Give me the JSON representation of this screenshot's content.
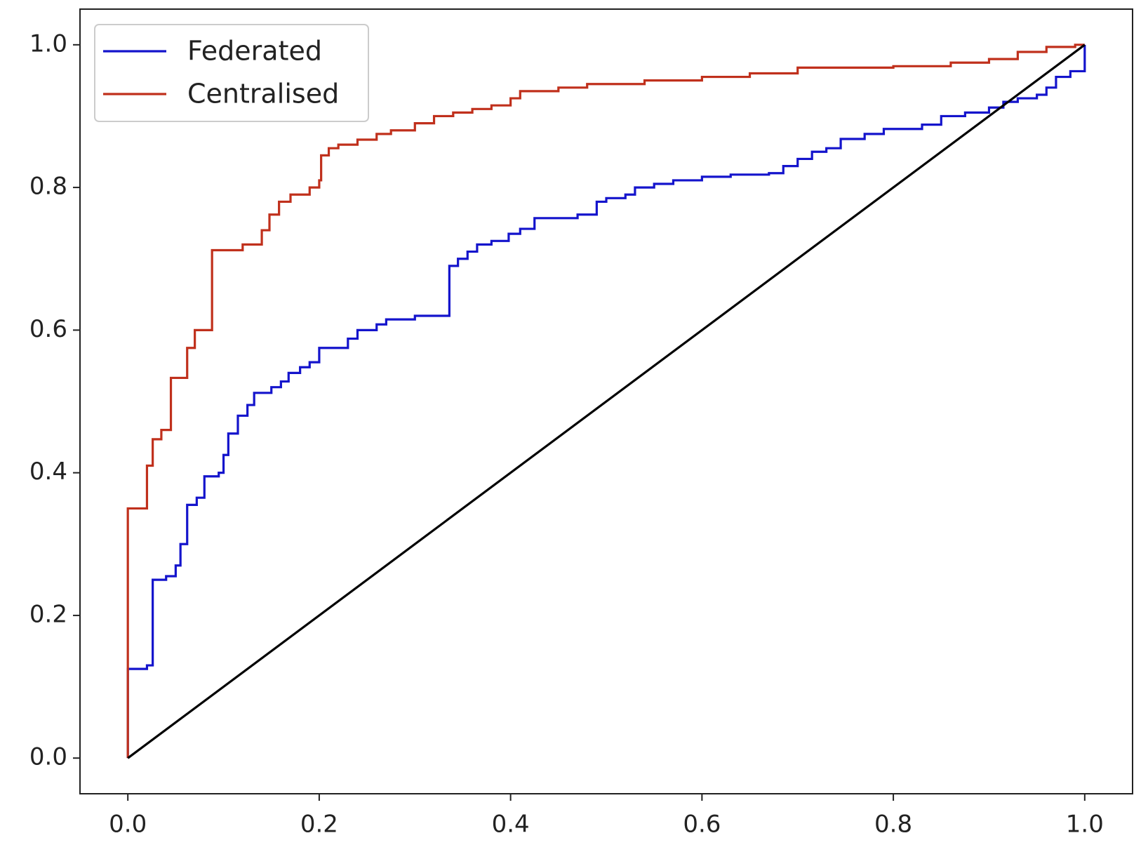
{
  "chart_data": {
    "type": "line",
    "xlim": [
      -0.05,
      1.05
    ],
    "ylim": [
      -0.05,
      1.05
    ],
    "xticks": [
      {
        "value": 0,
        "label": "0.0"
      },
      0.2,
      0.4,
      0.6,
      0.8,
      {
        "value": 1,
        "label": "1.0"
      }
    ],
    "yticks": [
      {
        "value": 0,
        "label": "0.0"
      },
      0.2,
      0.4,
      0.6,
      0.8,
      {
        "value": 1,
        "label": "1.0"
      }
    ],
    "legend": "upper left",
    "series": [
      {
        "name": "Federated",
        "color": "#1414cc",
        "drawstyle": "steps-post",
        "x": [
          0,
          0,
          0.02,
          0.026,
          0.04,
          0.05,
          0.055,
          0.062,
          0.072,
          0.08,
          0.095,
          0.1,
          0.105,
          0.115,
          0.125,
          0.132,
          0.15,
          0.16,
          0.168,
          0.18,
          0.19,
          0.2,
          0.23,
          0.24,
          0.26,
          0.27,
          0.3,
          0.336,
          0.345,
          0.355,
          0.365,
          0.38,
          0.398,
          0.41,
          0.425,
          0.47,
          0.49,
          0.5,
          0.52,
          0.53,
          0.55,
          0.57,
          0.6,
          0.63,
          0.67,
          0.685,
          0.7,
          0.715,
          0.73,
          0.745,
          0.77,
          0.79,
          0.83,
          0.85,
          0.875,
          0.9,
          0.915,
          0.93,
          0.95,
          0.96,
          0.97,
          0.985,
          1.0
        ],
        "values": [
          0,
          0.125,
          0.13,
          0.25,
          0.255,
          0.27,
          0.3,
          0.355,
          0.365,
          0.395,
          0.4,
          0.425,
          0.455,
          0.48,
          0.495,
          0.512,
          0.52,
          0.528,
          0.54,
          0.548,
          0.555,
          0.575,
          0.588,
          0.6,
          0.608,
          0.615,
          0.62,
          0.69,
          0.7,
          0.71,
          0.72,
          0.725,
          0.735,
          0.742,
          0.757,
          0.762,
          0.78,
          0.785,
          0.79,
          0.8,
          0.805,
          0.81,
          0.815,
          0.818,
          0.82,
          0.83,
          0.84,
          0.85,
          0.855,
          0.868,
          0.875,
          0.882,
          0.888,
          0.9,
          0.905,
          0.912,
          0.92,
          0.925,
          0.93,
          0.94,
          0.955,
          0.963,
          1.0
        ]
      },
      {
        "name": "Centralised",
        "color": "#c0301c",
        "drawstyle": "steps-post",
        "x": [
          0,
          0,
          0.02,
          0.026,
          0.035,
          0.045,
          0.062,
          0.07,
          0.088,
          0.12,
          0.14,
          0.148,
          0.158,
          0.17,
          0.19,
          0.2,
          0.202,
          0.21,
          0.22,
          0.24,
          0.26,
          0.275,
          0.3,
          0.32,
          0.34,
          0.36,
          0.38,
          0.4,
          0.41,
          0.45,
          0.48,
          0.54,
          0.6,
          0.65,
          0.7,
          0.8,
          0.86,
          0.9,
          0.93,
          0.96,
          0.99,
          1.0
        ],
        "values": [
          0,
          0.35,
          0.41,
          0.447,
          0.46,
          0.533,
          0.575,
          0.6,
          0.712,
          0.72,
          0.74,
          0.762,
          0.78,
          0.79,
          0.8,
          0.81,
          0.845,
          0.855,
          0.86,
          0.867,
          0.875,
          0.88,
          0.89,
          0.9,
          0.905,
          0.91,
          0.915,
          0.925,
          0.935,
          0.94,
          0.945,
          0.95,
          0.955,
          0.96,
          0.968,
          0.97,
          0.975,
          0.98,
          0.99,
          0.997,
          1.0,
          1.0
        ]
      },
      {
        "color": "#000000",
        "x": [
          0,
          1
        ],
        "values": [
          0,
          1
        ]
      }
    ]
  }
}
